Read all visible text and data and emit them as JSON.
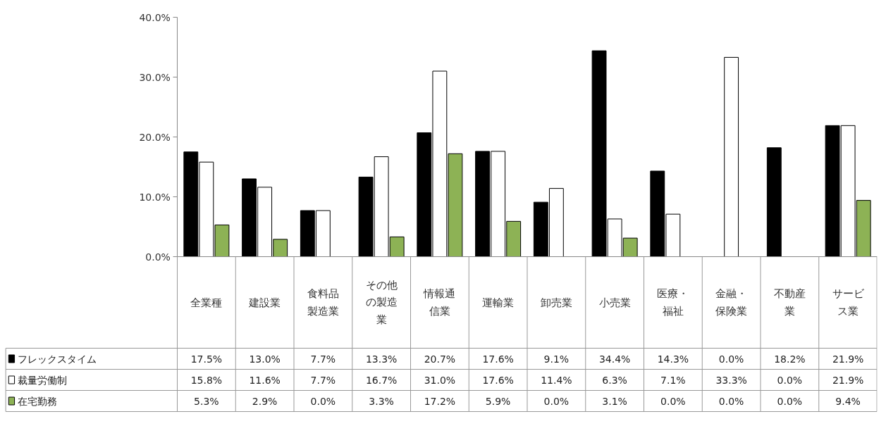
{
  "chart_data": {
    "type": "bar",
    "categories": [
      "全業種",
      "建設業",
      "食料品製造業",
      "その他の製造業",
      "情報通信業",
      "運輸業",
      "卸売業",
      "小売業",
      "医療・福祉",
      "金融・保険業",
      "不動産業",
      "サービス業"
    ],
    "series": [
      {
        "name": "フレックスタイム",
        "color": "#000000",
        "values": [
          17.5,
          13.0,
          7.7,
          13.3,
          20.7,
          17.6,
          9.1,
          34.4,
          14.3,
          0.0,
          18.2,
          21.9
        ],
        "value_labels": [
          "17.5%",
          "13.0%",
          "7.7%",
          "13.3%",
          "20.7%",
          "17.6%",
          "9.1%",
          "34.4%",
          "14.3%",
          "0.0%",
          "18.2%",
          "21.9%"
        ]
      },
      {
        "name": "裁量労働制",
        "color": "#ffffff",
        "values": [
          15.8,
          11.6,
          7.7,
          16.7,
          31.0,
          17.6,
          11.4,
          6.3,
          7.1,
          33.3,
          0.0,
          21.9
        ],
        "value_labels": [
          "15.8%",
          "11.6%",
          "7.7%",
          "16.7%",
          "31.0%",
          "17.6%",
          "11.4%",
          "6.3%",
          "7.1%",
          "33.3%",
          "0.0%",
          "21.9%"
        ]
      },
      {
        "name": "在宅勤務",
        "color": "#8db255",
        "values": [
          5.3,
          2.9,
          0.0,
          3.3,
          17.2,
          5.9,
          0.0,
          3.1,
          0.0,
          0.0,
          0.0,
          9.4
        ],
        "value_labels": [
          "5.3%",
          "2.9%",
          "0.0%",
          "3.3%",
          "17.2%",
          "5.9%",
          "0.0%",
          "3.1%",
          "0.0%",
          "0.0%",
          "0.0%",
          "9.4%"
        ]
      }
    ],
    "ylim": [
      0,
      40
    ],
    "yticks": [
      {
        "value": 0,
        "label": "0.0%"
      },
      {
        "value": 10,
        "label": "10.0%"
      },
      {
        "value": 20,
        "label": "20.0%"
      },
      {
        "value": 30,
        "label": "30.0%"
      },
      {
        "value": 40,
        "label": "40.0%"
      }
    ],
    "legend": "bottom left",
    "grid": false
  }
}
